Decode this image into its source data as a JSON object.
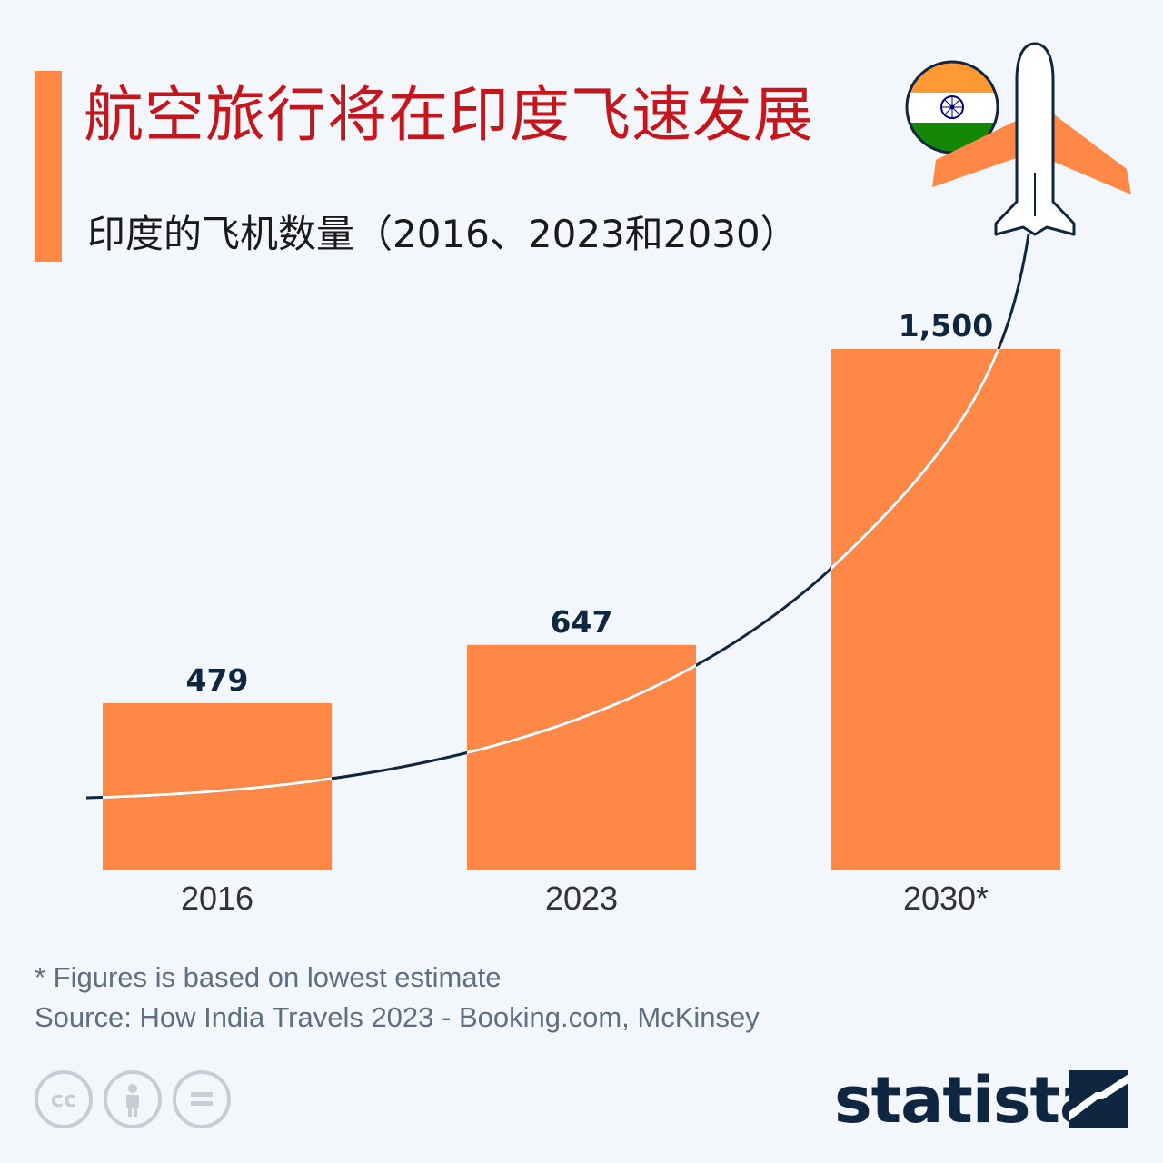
{
  "header": {
    "title": "航空旅行将在印度飞速发展",
    "subtitle": "印度的飞机数量（2016、2023和2030）"
  },
  "chart_data": {
    "type": "bar",
    "title": "航空旅行将在印度飞速发展",
    "subtitle": "印度的飞机数量（2016、2023和2030）",
    "categories": [
      "2016",
      "2023",
      "2030*"
    ],
    "values": [
      479,
      647,
      1500
    ],
    "value_labels": [
      "479",
      "647",
      "1,500"
    ],
    "ylim": [
      0,
      1500
    ],
    "grid": false,
    "legend": "none",
    "bar_color": "#ff8847",
    "value_label_color": "#0f2640"
  },
  "footer": {
    "footnote": "* Figures is based on lowest estimate",
    "source": "Source: How India Travels 2023 - Booking.com, McKinsey",
    "license_icons": [
      "cc-icon",
      "attribution-icon",
      "no-derivatives-icon"
    ],
    "brand": "statista"
  },
  "decorations": {
    "flag": "india-flag-icon",
    "plane": "airplane-icon",
    "trend_line_color": "#0f2640"
  },
  "colors": {
    "accent": "#ff8847",
    "title": "#c4161c",
    "background": "#f3f7fb",
    "brand": "#0f2640"
  }
}
